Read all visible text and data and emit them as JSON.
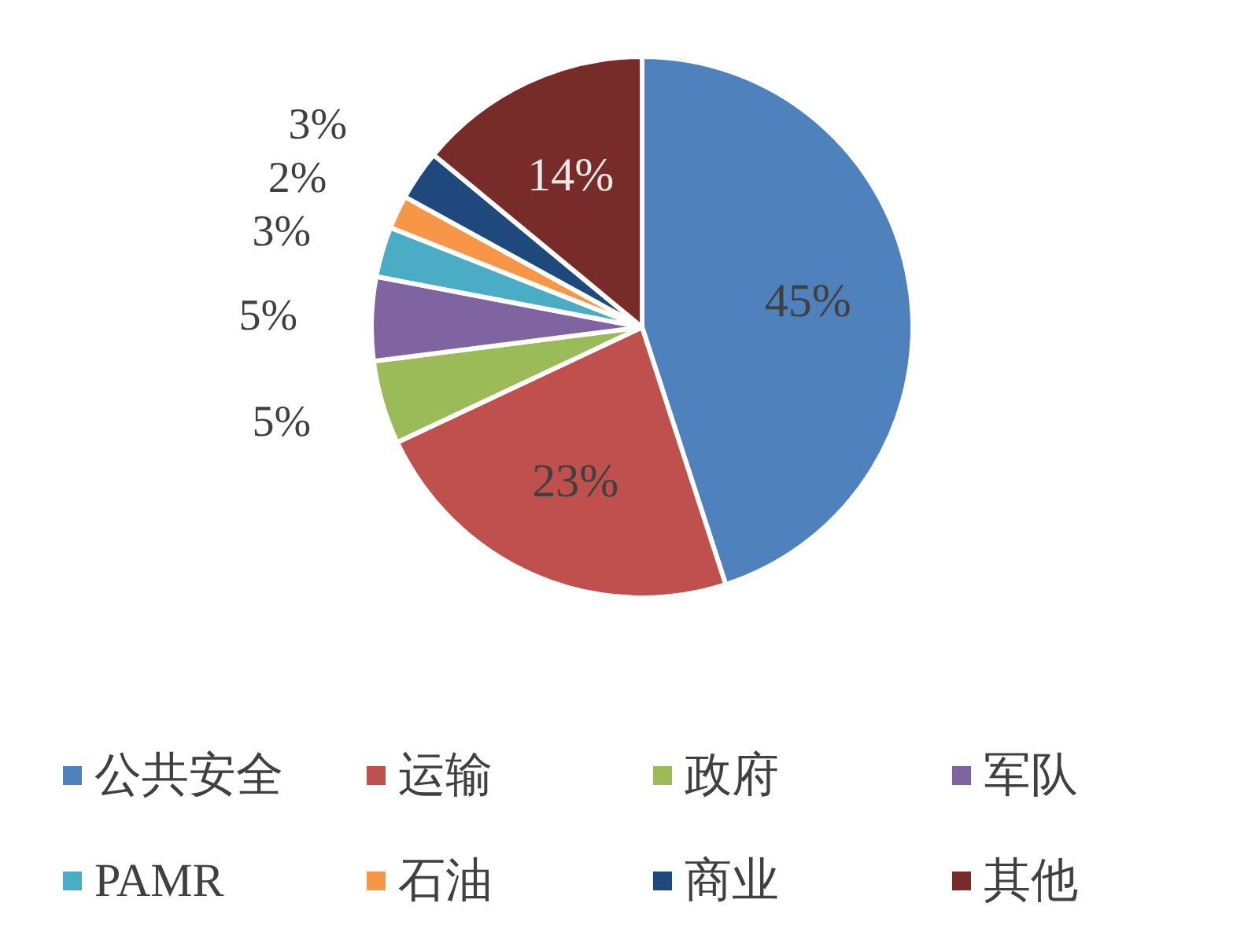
{
  "chart_data": {
    "type": "pie",
    "categories": [
      "公共安全",
      "运输",
      "政府",
      "军队",
      "PAMR",
      "石油",
      "商业",
      "其他"
    ],
    "values": [
      45,
      23,
      5,
      5,
      3,
      2,
      3,
      14
    ],
    "colors": [
      "#4f81bd",
      "#c0504d",
      "#9bbb59",
      "#8064a2",
      "#4bacc6",
      "#f79646",
      "#1f497d",
      "#772c2a"
    ],
    "value_labels": [
      "45%",
      "23%",
      "5%",
      "5%",
      "3%",
      "2%",
      "3%",
      "14%"
    ],
    "legend": "bottom"
  }
}
